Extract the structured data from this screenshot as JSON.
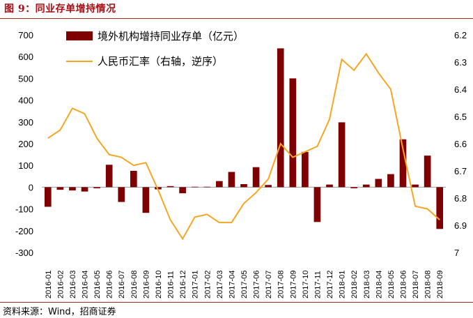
{
  "header": {
    "title": "图 9：同业存单增持情况"
  },
  "footer": {
    "source": "资料来源：Wind，招商证券"
  },
  "colors": {
    "bar": "#7f0000",
    "line": "#f5a623",
    "rule": "#b22222",
    "title": "#a50f15"
  },
  "chart_data": {
    "type": "bar+line",
    "categories": [
      "2016-01",
      "2016-02",
      "2016-03",
      "2016-04",
      "2016-05",
      "2016-06",
      "2016-07",
      "2016-08",
      "2016-09",
      "2016-10",
      "2016-11",
      "2016-12",
      "2017-01",
      "2017-02",
      "2017-03",
      "2017-04",
      "2017-05",
      "2017-06",
      "2017-07",
      "2017-08",
      "2017-09",
      "2017-10",
      "2017-11",
      "2017-12",
      "2018-01",
      "2018-02",
      "2018-03",
      "2018-04",
      "2018-05",
      "2018-06",
      "2018-07",
      "2018-08",
      "2018-09"
    ],
    "x_tick_labels": [
      "2016-01",
      "2016-02",
      "2016-03",
      "2016-04",
      "2016-05",
      "2016-06",
      "2016-07",
      "2016-08",
      "2016-09",
      "2016-10",
      "2016-11",
      "2016-12",
      "2017-01",
      "2017-02",
      "2017-03",
      "2017-04",
      "2017-05",
      "2017-06",
      "2017-07",
      "2017-08",
      "2017-09",
      "2017-10",
      "2017-11",
      "2017-12",
      "2018-01",
      "2018-02",
      "2018-03",
      "2018-04",
      "2018-05",
      "2018-06",
      "2018-07",
      "2018-08",
      "2018-09"
    ],
    "series": [
      {
        "name": "境外机构增持同业存单（亿元）",
        "type": "bar",
        "axis": "left",
        "values": [
          -90,
          -12,
          -15,
          -20,
          -5,
          103,
          -68,
          75,
          -118,
          -10,
          5,
          -28,
          2,
          2,
          28,
          70,
          14,
          92,
          10,
          638,
          500,
          162,
          -160,
          12,
          298,
          -5,
          12,
          38,
          60,
          220,
          12,
          145,
          -192
        ]
      },
      {
        "name": "人民币汇率（右轴，逆序）",
        "type": "line",
        "axis": "right",
        "values": [
          6.58,
          6.55,
          6.47,
          6.49,
          6.58,
          6.64,
          6.65,
          6.68,
          6.67,
          6.77,
          6.88,
          6.95,
          6.87,
          6.86,
          6.89,
          6.89,
          6.82,
          6.78,
          6.73,
          6.6,
          6.65,
          6.63,
          6.61,
          6.51,
          6.29,
          6.33,
          6.27,
          6.34,
          6.4,
          6.62,
          6.83,
          6.84,
          6.88
        ]
      }
    ],
    "y_left": {
      "min": -300,
      "max": 700,
      "ticks": [
        "-300",
        "-200",
        "-100",
        "0",
        "100",
        "200",
        "300",
        "400",
        "500",
        "600",
        "700"
      ]
    },
    "y_right": {
      "min": 6.2,
      "max": 7.0,
      "inverted": true,
      "ticks": [
        "6.2",
        "6.3",
        "6.4",
        "6.5",
        "6.6",
        "6.7",
        "6.8",
        "6.9",
        "7"
      ]
    },
    "legend": {
      "placement": "top-center"
    },
    "grid": false
  }
}
